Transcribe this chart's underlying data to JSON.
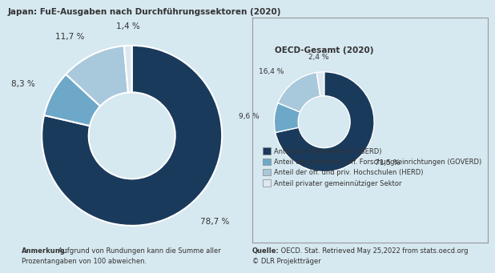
{
  "bg_color": "#d6e8f0",
  "title_japan": "Japan: FuE-Ausgaben nach Durchführungssektoren (2020)",
  "japan_values": [
    78.7,
    8.3,
    11.7,
    1.4
  ],
  "japan_labels": [
    "78,7 %",
    "8,3 %",
    "11,7 %",
    "1,4 %"
  ],
  "japan_colors": [
    "#1a3a5c",
    "#6ea8c8",
    "#a8c8dc",
    "#dce8f0"
  ],
  "oecd_values": [
    71.5,
    9.6,
    16.4,
    2.4
  ],
  "oecd_labels": [
    "71,5 %",
    "9,6 %",
    "16,4 %",
    "2,4 %"
  ],
  "oecd_colors": [
    "#1a3a5c",
    "#6ea8c8",
    "#a8c8dc",
    "#dce8f0"
  ],
  "title_oecd": "OECD-Gesamt (2020)",
  "legend_labels": [
    "Anteil der Unternehmen (BERD)",
    "Anteil der außeruniv. öff. Forschungseinrichtungen (GOVERD)",
    "Anteil der öff. und priv. Hochschulen (HERD)",
    "Anteil privater gemeinnütziger Sektor"
  ],
  "legend_colors": [
    "#1a3a5c",
    "#6ea8c8",
    "#a8c8dc",
    "#dce8f0"
  ],
  "note_bold": "Anmerkung:",
  "note_text": " Aufgrund von Rundungen kann die Summe aller\nProzentangaben von 100 abweichen.",
  "source_bold": "Quelle:",
  "source_text": " OECD. Stat. Retrieved May 25,2022 from stats.oecd.org\n© DLR Projektträger"
}
